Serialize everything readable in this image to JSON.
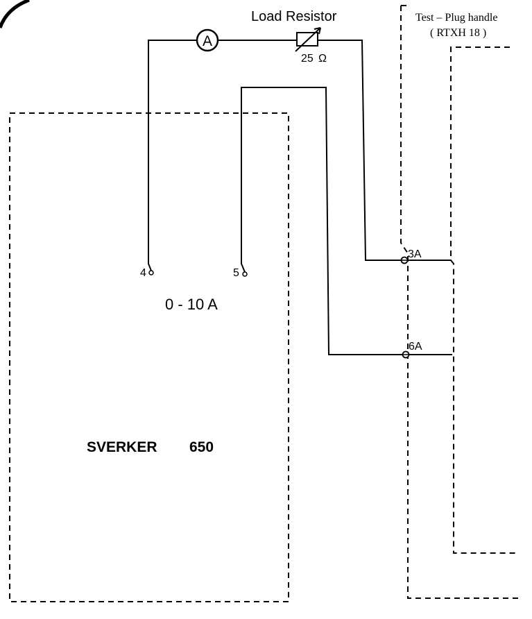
{
  "load_resistor": {
    "label": "Load Resistor",
    "value": "25",
    "unit_symbol": "Ω"
  },
  "ammeter": {
    "symbol": "A"
  },
  "test_plug": {
    "title_line1": "Test – Plug handle",
    "title_line2": "( RTXH 18 )",
    "terminal_3": "3A",
    "terminal_6": "6A"
  },
  "sverker": {
    "terminal_4": "4",
    "terminal_5": "5",
    "range": "0 - 10 A",
    "name": "SVERKER",
    "model": "650"
  }
}
